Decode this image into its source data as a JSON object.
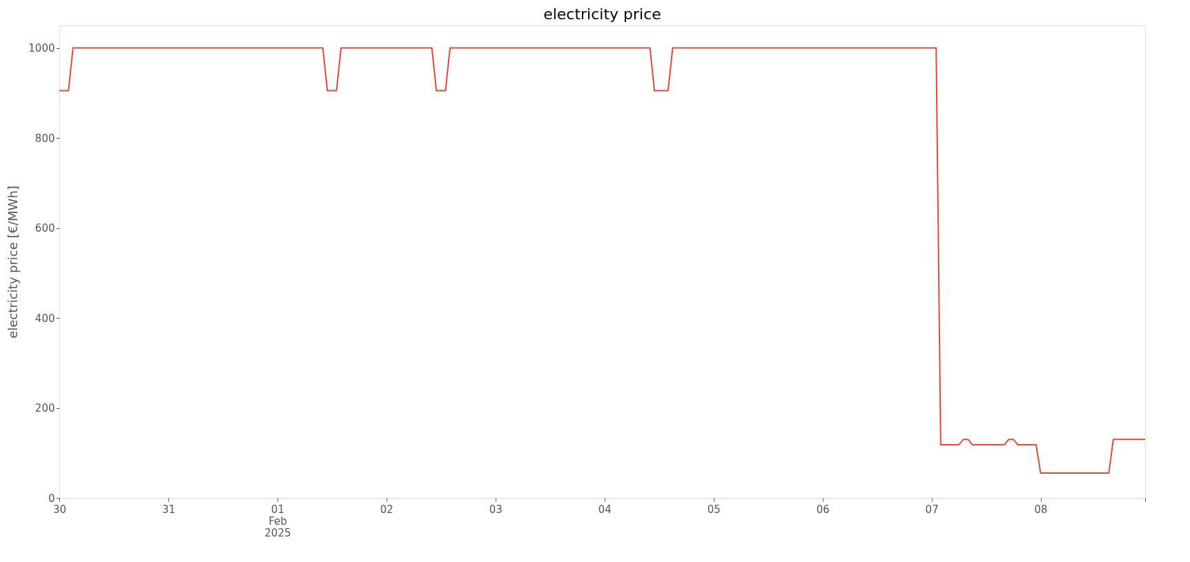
{
  "chart_data": {
    "type": "line",
    "title": "electricity price",
    "ylabel": "electricity price [€/MWh]",
    "x": [
      "2025-01-30T00:00",
      "2025-01-30T02:00",
      "2025-01-30T03:00",
      "2025-02-01T10:00",
      "2025-02-01T11:00",
      "2025-02-01T13:00",
      "2025-02-01T14:00",
      "2025-02-02T10:00",
      "2025-02-02T11:00",
      "2025-02-02T13:00",
      "2025-02-02T14:00",
      "2025-02-04T10:00",
      "2025-02-04T11:00",
      "2025-02-04T14:00",
      "2025-02-04T15:00",
      "2025-02-07T01:00",
      "2025-02-07T02:00",
      "2025-02-07T06:00",
      "2025-02-07T07:00",
      "2025-02-07T08:00",
      "2025-02-07T09:00",
      "2025-02-07T16:00",
      "2025-02-07T17:00",
      "2025-02-07T18:00",
      "2025-02-07T19:00",
      "2025-02-07T23:00",
      "2025-02-08T00:00",
      "2025-02-08T15:00",
      "2025-02-08T16:00",
      "2025-02-08T23:00"
    ],
    "series": [
      {
        "color": "#e24a33",
        "values": [
          905,
          905,
          1000,
          1000,
          905,
          905,
          1000,
          1000,
          905,
          905,
          1000,
          1000,
          905,
          905,
          1000,
          1000,
          118,
          118,
          130,
          130,
          118,
          118,
          130,
          130,
          118,
          118,
          55,
          55,
          130,
          130
        ]
      }
    ],
    "xlim": [
      "2025-01-30T00:00",
      "2025-02-08T23:00"
    ],
    "xticks": [
      {
        "value": "2025-01-30T00:00",
        "label": "30"
      },
      {
        "value": "2025-01-31T00:00",
        "label": "31"
      },
      {
        "value": "2025-02-01T00:00",
        "label": "01\nFeb\n2025"
      },
      {
        "value": "2025-02-02T00:00",
        "label": "02"
      },
      {
        "value": "2025-02-03T00:00",
        "label": "03"
      },
      {
        "value": "2025-02-04T00:00",
        "label": "04"
      },
      {
        "value": "2025-02-05T00:00",
        "label": "05"
      },
      {
        "value": "2025-02-06T00:00",
        "label": "06"
      },
      {
        "value": "2025-02-07T00:00",
        "label": "07"
      },
      {
        "value": "2025-02-08T00:00",
        "label": "08"
      },
      {
        "value": "2025-02-08T23:00",
        "label": null
      }
    ],
    "ylim": [
      0,
      1050
    ],
    "yticks": [
      0,
      200,
      400,
      600,
      800,
      1000
    ],
    "grid": false,
    "marker": "none",
    "line_style": "solid"
  }
}
